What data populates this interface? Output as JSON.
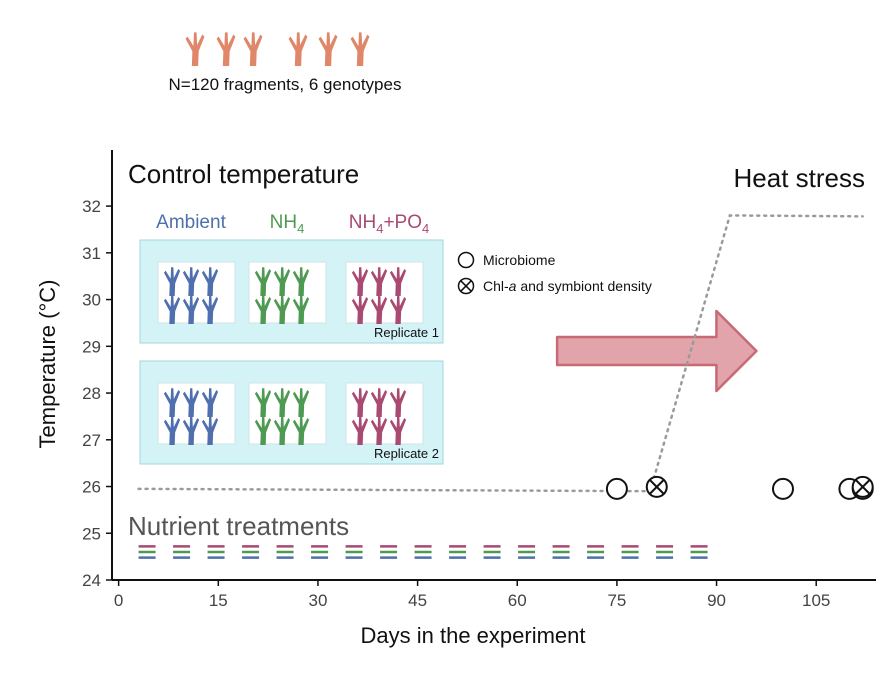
{
  "header": {
    "caption": "N=120 fragments, 6 genotypes",
    "coral_color": "#e0876a",
    "coral_count": 6
  },
  "panels": {
    "control_title": "Control temperature",
    "heat_title": "Heat stress",
    "nutrient_title": "Nutrient treatments"
  },
  "treatments": [
    {
      "label": "Ambient",
      "color": "#4f6fae"
    },
    {
      "label": "NH",
      "sub": "4",
      "color": "#4f9a52"
    },
    {
      "label": "NH",
      "sub": "4",
      "suffix": "+PO",
      "sub2": "4",
      "color": "#a84a72"
    }
  ],
  "replicates": [
    "Replicate 1",
    "Replicate 2"
  ],
  "legend": {
    "microbiome": "Microbiome",
    "chl_prefix": "Chl-",
    "chl_italic": "a",
    "chl_suffix": " and symbiont density"
  },
  "chart_data": {
    "type": "line",
    "xlabel": "Days in the experiment",
    "ylabel": "Temperature (°C)",
    "xlim": [
      -1,
      114
    ],
    "ylim": [
      24,
      33.2
    ],
    "xticks": [
      0,
      15,
      30,
      45,
      60,
      75,
      90,
      105
    ],
    "yticks": [
      24,
      25,
      26,
      27,
      28,
      29,
      30,
      31,
      32
    ],
    "temperature_profile": {
      "x": [
        3,
        80,
        92,
        112
      ],
      "y": [
        25.95,
        25.9,
        31.8,
        31.78
      ],
      "color": "#9a9a9a",
      "style": "dotted"
    },
    "sampling": {
      "microbiome_days": [
        75,
        100,
        110,
        112
      ],
      "chl_days": [
        81,
        112
      ],
      "level": 25.95
    },
    "nutrient_dashes": {
      "start_day": 3,
      "end_day": 90,
      "levels": [
        24.72,
        24.6,
        24.48
      ],
      "colors": [
        "#a84a72",
        "#4f9a52",
        "#4f6fae"
      ]
    },
    "arrow": {
      "x_from": 66,
      "x_to": 96,
      "y_center": 28.9,
      "fill": "#e0a4aa",
      "stroke": "#c86a76"
    },
    "grid": false
  }
}
